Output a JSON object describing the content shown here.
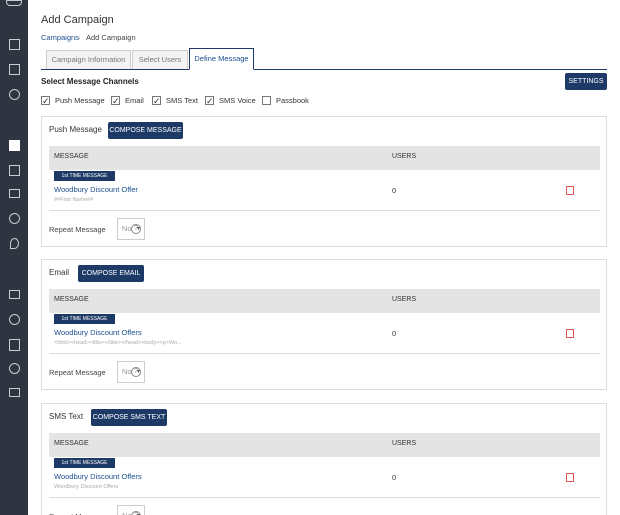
{
  "header": {
    "title": "Add Campaign",
    "breadcrumb": [
      "Campaigns",
      "Add Campaign"
    ]
  },
  "tabs": [
    "Campaign Information",
    "Select Users",
    "Define Message"
  ],
  "channels": {
    "title": "Select Message Channels",
    "settings": "SETTINGS",
    "options": [
      {
        "label": "Push Message",
        "checked": true
      },
      {
        "label": "Email",
        "checked": true
      },
      {
        "label": "SMS Text",
        "checked": true
      },
      {
        "label": "SMS Voice",
        "checked": true
      },
      {
        "label": "Passbook",
        "checked": false
      }
    ]
  },
  "sections": [
    {
      "title": "Push Message",
      "button": "COMPOSE MESSAGE",
      "columns": [
        "MESSAGE",
        "USERS"
      ],
      "badge": "1st TIME MESSAGE",
      "message": "Woodbury Discount Offer",
      "preview": "##First Name##",
      "users": "0",
      "repeat": "Repeat Message",
      "select": "No"
    },
    {
      "title": "Email",
      "button": "COMPOSE EMAIL",
      "columns": [
        "MESSAGE",
        "USERS"
      ],
      "badge": "1st TIME MESSAGE",
      "message": "Woodbury Discount Offers",
      "preview": "<html><head><title></title></head><body><p>Wo...",
      "users": "0",
      "repeat": "Repeat Message",
      "select": "No"
    },
    {
      "title": "SMS Text",
      "button": "COMPOSE SMS TEXT",
      "columns": [
        "MESSAGE",
        "USERS"
      ],
      "badge": "1st TIME MESSAGE",
      "message": "Woodbury Discount Offers",
      "preview": "Woodbury Discount Offers",
      "users": "0",
      "repeat": "Repeat Message",
      "select": "No"
    }
  ]
}
